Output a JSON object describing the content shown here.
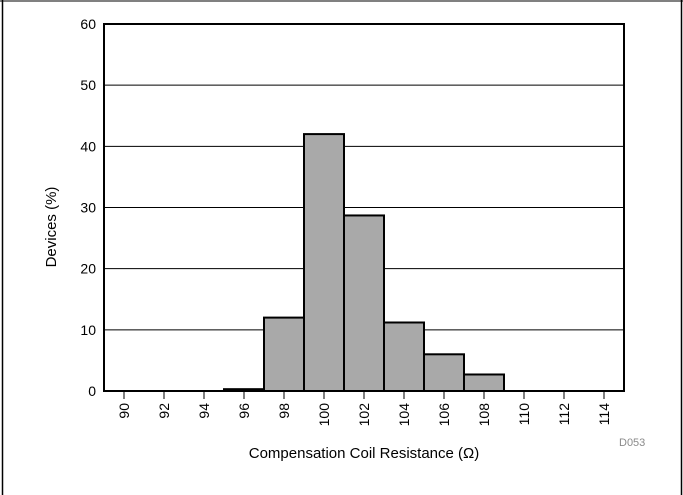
{
  "chart_data": {
    "type": "bar",
    "title": "",
    "xlabel": "Compensation Coil Resistance (Ω)",
    "ylabel": "Devices (%)",
    "figure_code": "D053",
    "ylim": [
      0,
      60
    ],
    "xlim": [
      89,
      115
    ],
    "yticks": [
      "0",
      "10",
      "20",
      "30",
      "40",
      "50",
      "60"
    ],
    "xticks": [
      "90",
      "92",
      "94",
      "96",
      "98",
      "100",
      "102",
      "104",
      "106",
      "108",
      "110",
      "112",
      "114"
    ],
    "grid": "horizontal",
    "colors": {
      "bar_fill": "#a9a9a9",
      "bar_edge": "#000000",
      "grid": "#000000"
    },
    "bins": [
      {
        "start": 95,
        "end": 97,
        "value": 0.3
      },
      {
        "start": 97,
        "end": 99,
        "value": 12
      },
      {
        "start": 99,
        "end": 101,
        "value": 42
      },
      {
        "start": 101,
        "end": 103,
        "value": 28.7
      },
      {
        "start": 103,
        "end": 105,
        "value": 11.2
      },
      {
        "start": 105,
        "end": 107,
        "value": 6
      },
      {
        "start": 107,
        "end": 109,
        "value": 2.7
      }
    ]
  }
}
